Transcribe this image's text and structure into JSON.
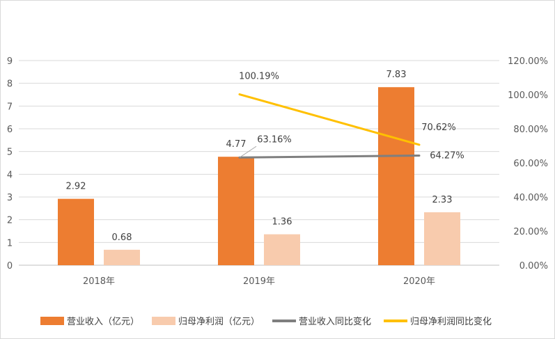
{
  "chart_data": {
    "type": "bar",
    "categories": [
      "2018年",
      "2019年",
      "2020年"
    ],
    "series": [
      {
        "name": "营业收入（亿元）",
        "kind": "bar",
        "axis": "left",
        "color": "#ED7D31",
        "values": [
          2.92,
          4.77,
          7.83
        ],
        "labels": [
          "2.92",
          "4.77",
          "7.83"
        ]
      },
      {
        "name": "归母净利润（亿元）",
        "kind": "bar",
        "axis": "left",
        "color": "#F8CBAD",
        "values": [
          0.68,
          1.36,
          2.33
        ],
        "labels": [
          "0.68",
          "1.36",
          "2.33"
        ]
      },
      {
        "name": "营业收入同比变化",
        "kind": "line",
        "axis": "right",
        "color": "#7F7F7F",
        "values": [
          null,
          63.16,
          64.27
        ],
        "labels": [
          "",
          "63.16%",
          "64.27%"
        ]
      },
      {
        "name": "归母净利润同比变化",
        "kind": "line",
        "axis": "right",
        "color": "#FFC000",
        "values": [
          null,
          100.19,
          70.62
        ],
        "labels": [
          "",
          "100.19%",
          "70.62%"
        ]
      }
    ],
    "left_axis": {
      "min": 0,
      "max": 9,
      "ticks": [
        "0",
        "1",
        "2",
        "3",
        "4",
        "5",
        "6",
        "7",
        "8",
        "9"
      ]
    },
    "right_axis": {
      "min": 0,
      "max": 120,
      "ticks": [
        "0.00%",
        "20.00%",
        "40.00%",
        "60.00%",
        "80.00%",
        "100.00%",
        "120.00%"
      ]
    },
    "grid": true,
    "legend_position": "bottom"
  }
}
